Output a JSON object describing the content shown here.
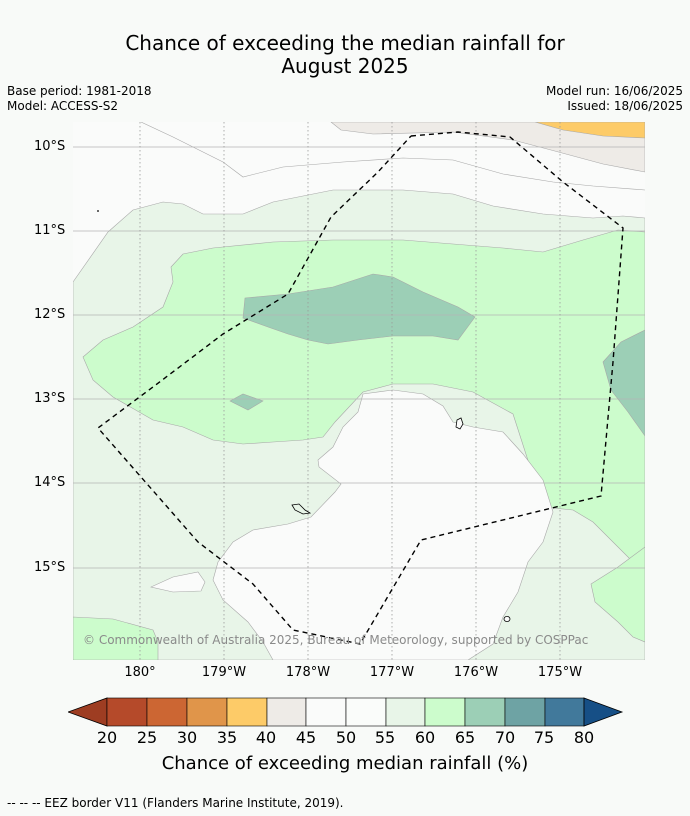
{
  "title_line1": "Chance of exceeding the median rainfall for",
  "title_line2": "August 2025",
  "base_period": "Base period: 1981-2018",
  "model": "Model: ACCESS-S2",
  "model_run": "Model run: 16/06/2025",
  "issued": "Issued: 18/06/2025",
  "lat_labels": [
    "10°S",
    "11°S",
    "12°S",
    "13°S",
    "14°S",
    "15°S"
  ],
  "lon_labels": [
    "180°",
    "179°W",
    "178°W",
    "177°W",
    "176°W",
    "175°W"
  ],
  "copyright": "© Commonwealth of Australia 2025, Bureau of Meteorology, supported by COSPPac",
  "colorbar": {
    "label": "Chance of exceeding median rainfall (%)",
    "ticks": [
      "20",
      "25",
      "30",
      "35",
      "40",
      "45",
      "50",
      "55",
      "60",
      "65",
      "70",
      "75",
      "80"
    ],
    "colors": [
      "#9e3d22",
      "#b54a2a",
      "#cc6633",
      "#e0954a",
      "#fdcb68",
      "#eeebe7",
      "#fafbfa",
      "#fafcfa",
      "#e8f5e8",
      "#ccfccc",
      "#9ccfb6",
      "#6ea3a4",
      "#41799b",
      "#164f86"
    ]
  },
  "footer": "--  --  -- EEZ border V11 (Flanders Marine Institute, 2019)."
}
